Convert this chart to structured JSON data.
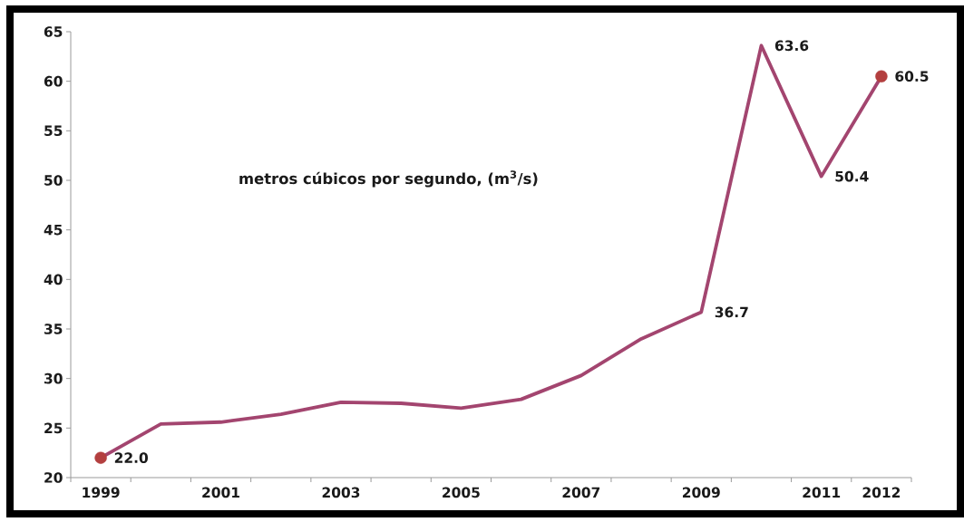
{
  "chart_data": {
    "type": "line",
    "categories": [
      "1999",
      null,
      "2001",
      null,
      "2003",
      null,
      "2005",
      null,
      "2007",
      null,
      "2009",
      null,
      "2011",
      "2012"
    ],
    "series": [
      {
        "color": "#a3456f",
        "line_style": "solid",
        "values": [
          22.0,
          25.4,
          25.6,
          26.4,
          27.6,
          27.5,
          27.0,
          27.9,
          30.3,
          34.0,
          36.7,
          63.6,
          50.4,
          60.5
        ],
        "value_labels": [
          "22.0",
          null,
          null,
          null,
          null,
          null,
          null,
          null,
          null,
          null,
          "36.7",
          "63.6",
          "50.4",
          "60.5"
        ]
      },
      {
        "type": "scatter",
        "color": "#b33f3f",
        "marker": "circle",
        "values": [
          22.0,
          null,
          null,
          null,
          null,
          null,
          null,
          null,
          null,
          null,
          null,
          null,
          null,
          60.5
        ]
      }
    ],
    "ylim": [
      20,
      65
    ],
    "yticks": [
      20,
      25,
      30,
      35,
      40,
      45,
      50,
      55,
      60,
      65
    ],
    "annotations": [
      "metros cúbicos por segundo, (m$^{3}$/s)"
    ]
  }
}
